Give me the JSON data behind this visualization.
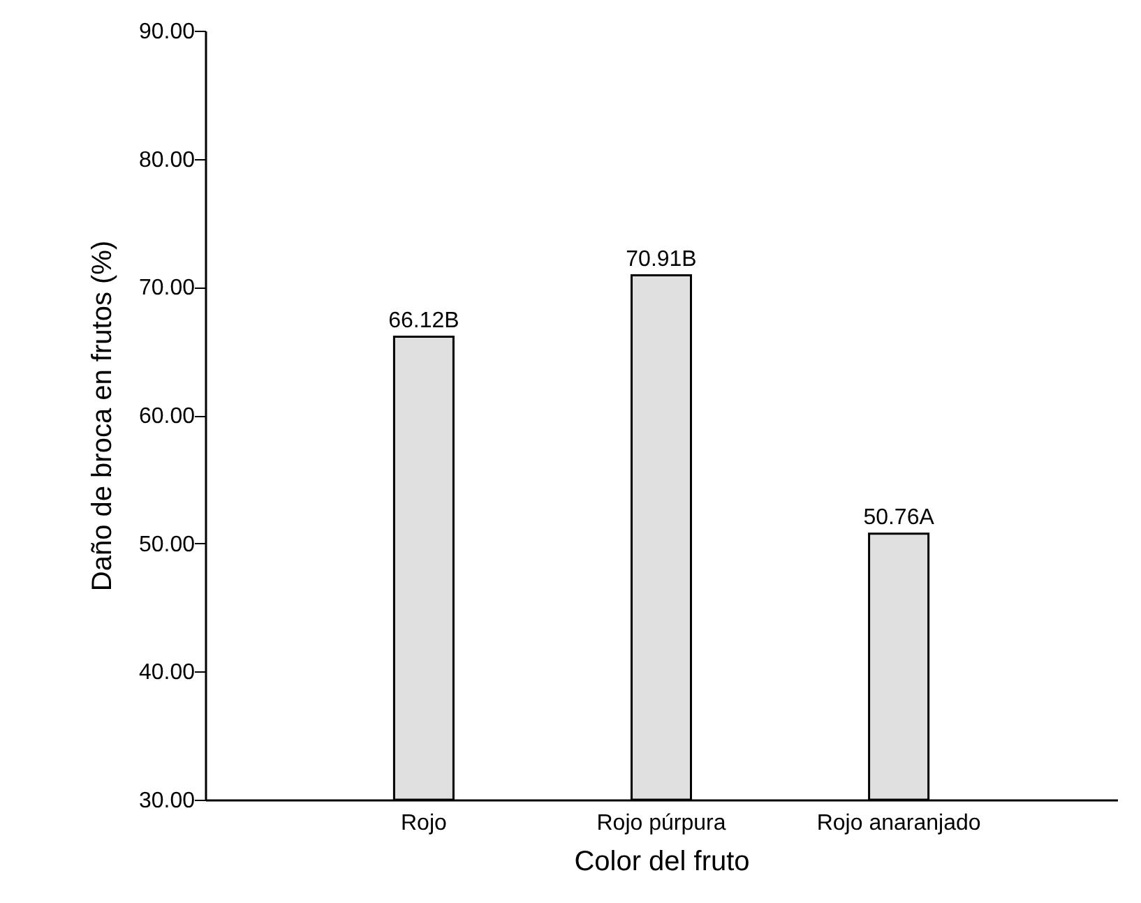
{
  "chart_data": {
    "type": "bar",
    "xlabel": "Color del fruto",
    "ylabel": "Daño de broca en frutos (%)",
    "categories": [
      "Rojo",
      "Rojo púrpura",
      "Rojo anaranjado"
    ],
    "values": [
      66.12,
      70.91,
      50.76
    ],
    "value_labels": [
      "66.12B",
      "70.91B",
      "50.76A"
    ],
    "color": "#e0e0e0",
    "ylim": [
      30,
      90
    ],
    "yticks": [
      {
        "value": 30,
        "label": "30.00"
      },
      {
        "value": 40,
        "label": "40.00"
      },
      {
        "value": 50,
        "label": "50.00"
      },
      {
        "value": 60,
        "label": "60.00"
      },
      {
        "value": 70,
        "label": "70.00"
      },
      {
        "value": 80,
        "label": "80.00"
      },
      {
        "value": 90,
        "label": "90.00"
      }
    ],
    "grid": false
  }
}
